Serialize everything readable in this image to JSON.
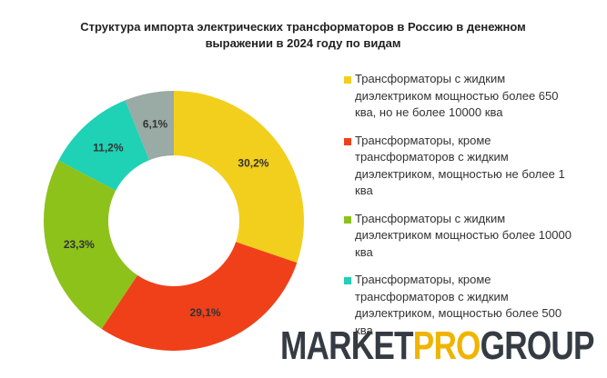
{
  "chart_data": {
    "type": "donut",
    "title": "Структура импорта электрических трансформаторов в Россию в денежном выражении в 2024 году по видам",
    "categories": [
      "Трансформаторы с жидким диэлектриком мощностью более 650 ква, но не более 10000 ква",
      "Трансформаторы, кроме трансформаторов с жидким диэлектриком, мощностью не более 1 ква",
      "Трансформаторы с жидким диэлектриком мощностью более 10000 ква",
      "Трансформаторы, кроме трансформаторов с жидким диэлектриком, мощностью более 500 ква",
      null
    ],
    "values": [
      30.2,
      29.1,
      23.3,
      11.2,
      6.1
    ],
    "value_labels": [
      "30,2%",
      "29,1%",
      "23,3%",
      "11,2%",
      "6,1%"
    ],
    "colors": [
      "#f2cf1c",
      "#f0401a",
      "#8cc21a",
      "#1fd1b5",
      "#9aaaa5"
    ]
  },
  "watermark": {
    "parts": [
      "MARKET",
      "PRO",
      "GROUP"
    ],
    "colors": [
      "#343b42",
      "#f0b400",
      "#343b42"
    ]
  }
}
